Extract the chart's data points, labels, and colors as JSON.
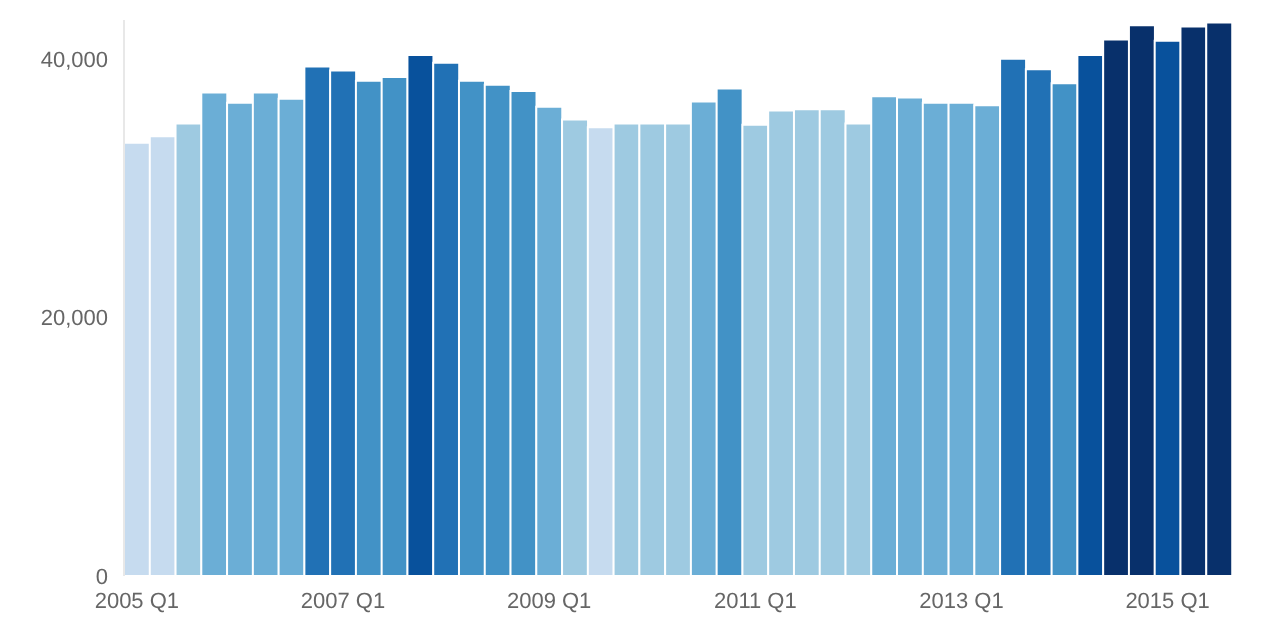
{
  "chart_data": {
    "type": "bar",
    "categories": [
      "2005 Q1",
      null,
      null,
      null,
      null,
      null,
      null,
      null,
      "2007 Q1",
      null,
      null,
      null,
      null,
      null,
      null,
      null,
      "2009 Q1",
      null,
      null,
      null,
      null,
      null,
      null,
      null,
      "2011 Q1",
      null,
      null,
      null,
      null,
      null,
      null,
      null,
      "2013 Q1",
      null,
      null,
      null,
      null,
      null,
      null,
      null,
      "2015 Q1",
      null,
      null
    ],
    "values": [
      33500,
      34000,
      35000,
      37400,
      36600,
      37400,
      36900,
      39400,
      39100,
      38300,
      38600,
      40300,
      39700,
      38300,
      38000,
      37500,
      36300,
      35300,
      34700,
      35000,
      35000,
      35000,
      36700,
      37700,
      34900,
      36000,
      36100,
      36100,
      35000,
      37100,
      37000,
      36600,
      36600,
      36400,
      40000,
      39200,
      38100,
      40300,
      41500,
      42600,
      41400,
      42500,
      42800
    ],
    "colors": [
      "#c6dbef",
      "#c6dbef",
      "#9ecae1",
      "#6baed6",
      "#6baed6",
      "#6baed6",
      "#6baed6",
      "#2171b5",
      "#2171b5",
      "#4292c6",
      "#4292c6",
      "#08519c",
      "#2171b5",
      "#4292c6",
      "#4292c6",
      "#4292c6",
      "#6baed6",
      "#9ecae1",
      "#c6dbef",
      "#9ecae1",
      "#9ecae1",
      "#9ecae1",
      "#6baed6",
      "#4292c6",
      "#9ecae1",
      "#9ecae1",
      "#9ecae1",
      "#9ecae1",
      "#9ecae1",
      "#6baed6",
      "#6baed6",
      "#6baed6",
      "#6baed6",
      "#6baed6",
      "#2171b5",
      "#2171b5",
      "#4292c6",
      "#08519c",
      "#08306b",
      "#08306b",
      "#08519c",
      "#08306b",
      "#08306b"
    ],
    "ylim": [
      0,
      43000
    ],
    "yticks": [
      {
        "value": 0,
        "label": "0"
      },
      {
        "value": 20000,
        "label": "20,000"
      },
      {
        "value": 40000,
        "label": "40,000"
      }
    ],
    "grid": false,
    "legend": false
  }
}
